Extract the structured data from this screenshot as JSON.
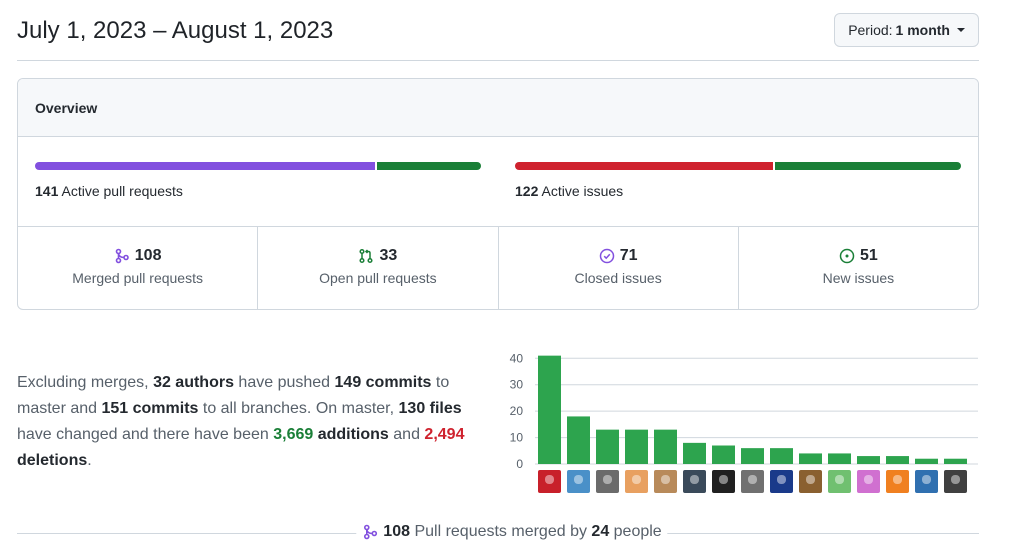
{
  "header": {
    "date_range": "July 1, 2023 – August 1, 2023",
    "period_prefix": "Period:",
    "period_value": "1 month"
  },
  "overview": {
    "title": "Overview",
    "pull_requests": {
      "count": "141",
      "label": "Active pull requests",
      "merged_fraction": 0.766,
      "merged_color": "#8250df",
      "open_color": "#1a7f37"
    },
    "issues": {
      "count": "122",
      "label": "Active issues",
      "closed_fraction": 0.582,
      "closed_color": "#cf222e",
      "new_color": "#1a7f37"
    },
    "stats": [
      {
        "icon": "merged-pr-icon",
        "value": "108",
        "label": "Merged pull requests",
        "color": "#8250df"
      },
      {
        "icon": "open-pr-icon",
        "value": "33",
        "label": "Open pull requests",
        "color": "#1a7f37"
      },
      {
        "icon": "closed-issue-icon",
        "value": "71",
        "label": "Closed issues",
        "color": "#8250df"
      },
      {
        "icon": "new-issue-icon",
        "value": "51",
        "label": "New issues",
        "color": "#1a7f37"
      }
    ]
  },
  "summary": {
    "t1": "Excluding merges, ",
    "authors": "32 authors",
    "t2": " have pushed ",
    "commits_master": "149 commits",
    "t3": " to master and ",
    "commits_all": "151 commits",
    "t4": " to all branches. On master, ",
    "files": "130 files",
    "t5": " have changed and there have been ",
    "additions_num": "3,669",
    "additions_word": " additions",
    "t6": " and ",
    "deletions_num": "2,494",
    "deletions_word": " deletions",
    "t7": "."
  },
  "chart_data": {
    "type": "bar",
    "values": [
      41,
      18,
      13,
      13,
      13,
      8,
      7,
      6,
      6,
      4,
      4,
      3,
      3,
      2,
      2
    ],
    "yticks": [
      0,
      10,
      20,
      30,
      40
    ],
    "ylim": [
      0,
      42
    ],
    "color": "#2da44e",
    "avatar_colors": [
      "#c8202a",
      "#4a90c8",
      "#6b6b6b",
      "#e8a060",
      "#b88a5a",
      "#3a4a5a",
      "#202020",
      "#707070",
      "#1a3a8a",
      "#8a6030",
      "#70c070",
      "#d070d0",
      "#f08020",
      "#3070b0",
      "#404040"
    ]
  },
  "footer": {
    "merged_count": "108",
    "t1": " Pull requests merged by ",
    "people_count": "24",
    "t2": " people"
  }
}
